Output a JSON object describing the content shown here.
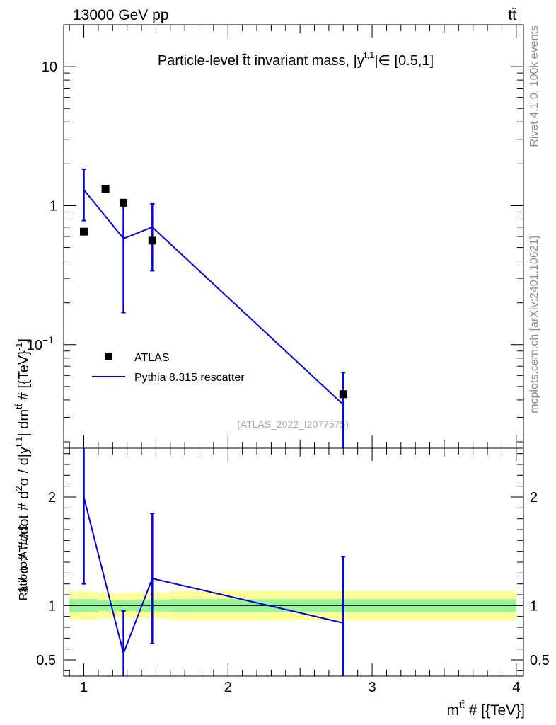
{
  "header": {
    "energy_label": "13000 GeV pp",
    "process_label": "tt̄"
  },
  "side_labels": {
    "rivet": "Rivet 4.1.0,  100k events",
    "mcplots": "mcplots.cern.ch [arXiv:2401.10621]"
  },
  "analysis_tag": "(ATLAS_2022_I2077575)",
  "colors": {
    "data": "#000000",
    "mc": "#0000e6",
    "band_inner": "#99f599",
    "band_outer": "#ffff99"
  },
  "chart_data": [
    {
      "type": "scatter",
      "title": "Particle-level t̄t invariant mass, |y^{t,1}| ∈ [0.5,1]",
      "title_parts": {
        "prefix": "Particle-level t̄t invariant mass, |y",
        "superscript": "t,1",
        "suffix": "|∈ [0.5,1]"
      },
      "ylabel": "1 / σ # #cdot # d²σ / d|y^{t,1}| dm^{tt̄} # [{TeV}⁻¹]",
      "ylabel_parts": {
        "a": "1 / σ # #cdot # d",
        "b": "σ / d|y",
        "c": "| dm",
        "d": " # [{TeV}",
        "e": "]",
        "sup_2": "2",
        "sup_t1": "t,1",
        "sup_tt": "tt̄",
        "sup_m1": "-1"
      },
      "yscale": "log",
      "ylim": [
        0.018,
        20
      ],
      "xlim": [
        0.86,
        4.05
      ],
      "yticks": [
        {
          "value": 10,
          "label": "10"
        },
        {
          "value": 1,
          "label": "1"
        },
        {
          "value": 0.1,
          "label": "10",
          "exp": "−1"
        }
      ],
      "legend": {
        "position": "bottom-left",
        "entries": [
          {
            "label": "ATLAS",
            "series": "ATLAS"
          },
          {
            "label": "Pythia 8.315 rescatter",
            "series": "Pythia 8.315 rescatter"
          }
        ]
      },
      "series": [
        {
          "name": "ATLAS",
          "style": "markers",
          "x": [
            1.0,
            1.15,
            1.275,
            1.475,
            2.8
          ],
          "y": [
            0.65,
            1.32,
            1.05,
            0.56,
            0.044
          ]
        },
        {
          "name": "Pythia 8.315 rescatter",
          "style": "line",
          "x": [
            1.0,
            1.275,
            1.475,
            2.8
          ],
          "y": [
            1.3,
            0.58,
            0.7,
            0.037
          ],
          "err_low": [
            0.78,
            0.17,
            0.34,
            0.001
          ],
          "err_high": [
            1.83,
            1.0,
            1.03,
            0.063
          ]
        }
      ]
    },
    {
      "type": "line",
      "ylabel": "Ratio to ATLAS",
      "xlabel": "m^{tt̄} # [{TeV}]",
      "xlabel_parts": {
        "base": "m",
        "sup": "tt̄",
        "rest": " # [{TeV}]"
      },
      "xlim": [
        0.86,
        4.05
      ],
      "ylim": [
        0.35,
        2.45
      ],
      "xticks": [
        {
          "value": 1,
          "label": "1"
        },
        {
          "value": 2,
          "label": "2"
        },
        {
          "value": 3,
          "label": "3"
        },
        {
          "value": 4,
          "label": "4"
        }
      ],
      "yticks": [
        {
          "value": 2,
          "label": "2"
        },
        {
          "value": 1,
          "label": "1"
        },
        {
          "value": 0.5,
          "label": "0.5"
        }
      ],
      "bands": [
        {
          "x0": 0.9,
          "x1": 1.1,
          "inner": [
            0.94,
            1.06
          ],
          "outer": [
            0.87,
            1.13
          ]
        },
        {
          "x0": 1.1,
          "x1": 1.2,
          "inner": [
            0.95,
            1.05
          ],
          "outer": [
            0.88,
            1.12
          ]
        },
        {
          "x0": 1.2,
          "x1": 1.35,
          "inner": [
            0.95,
            1.05
          ],
          "outer": [
            0.885,
            1.115
          ]
        },
        {
          "x0": 1.35,
          "x1": 1.6,
          "inner": [
            0.945,
            1.055
          ],
          "outer": [
            0.88,
            1.12
          ]
        },
        {
          "x0": 1.6,
          "x1": 4.0,
          "inner": [
            0.94,
            1.06
          ],
          "outer": [
            0.865,
            1.135
          ]
        }
      ],
      "series": [
        {
          "name": "Pythia 8.315 rescatter",
          "x": [
            1.0,
            1.275,
            1.475,
            2.8
          ],
          "y": [
            2.0,
            0.56,
            1.25,
            0.84
          ],
          "err_low": [
            1.2,
            0.3,
            0.65,
            0.3
          ],
          "err_high": [
            2.5,
            0.95,
            1.85,
            1.45
          ]
        }
      ]
    }
  ]
}
